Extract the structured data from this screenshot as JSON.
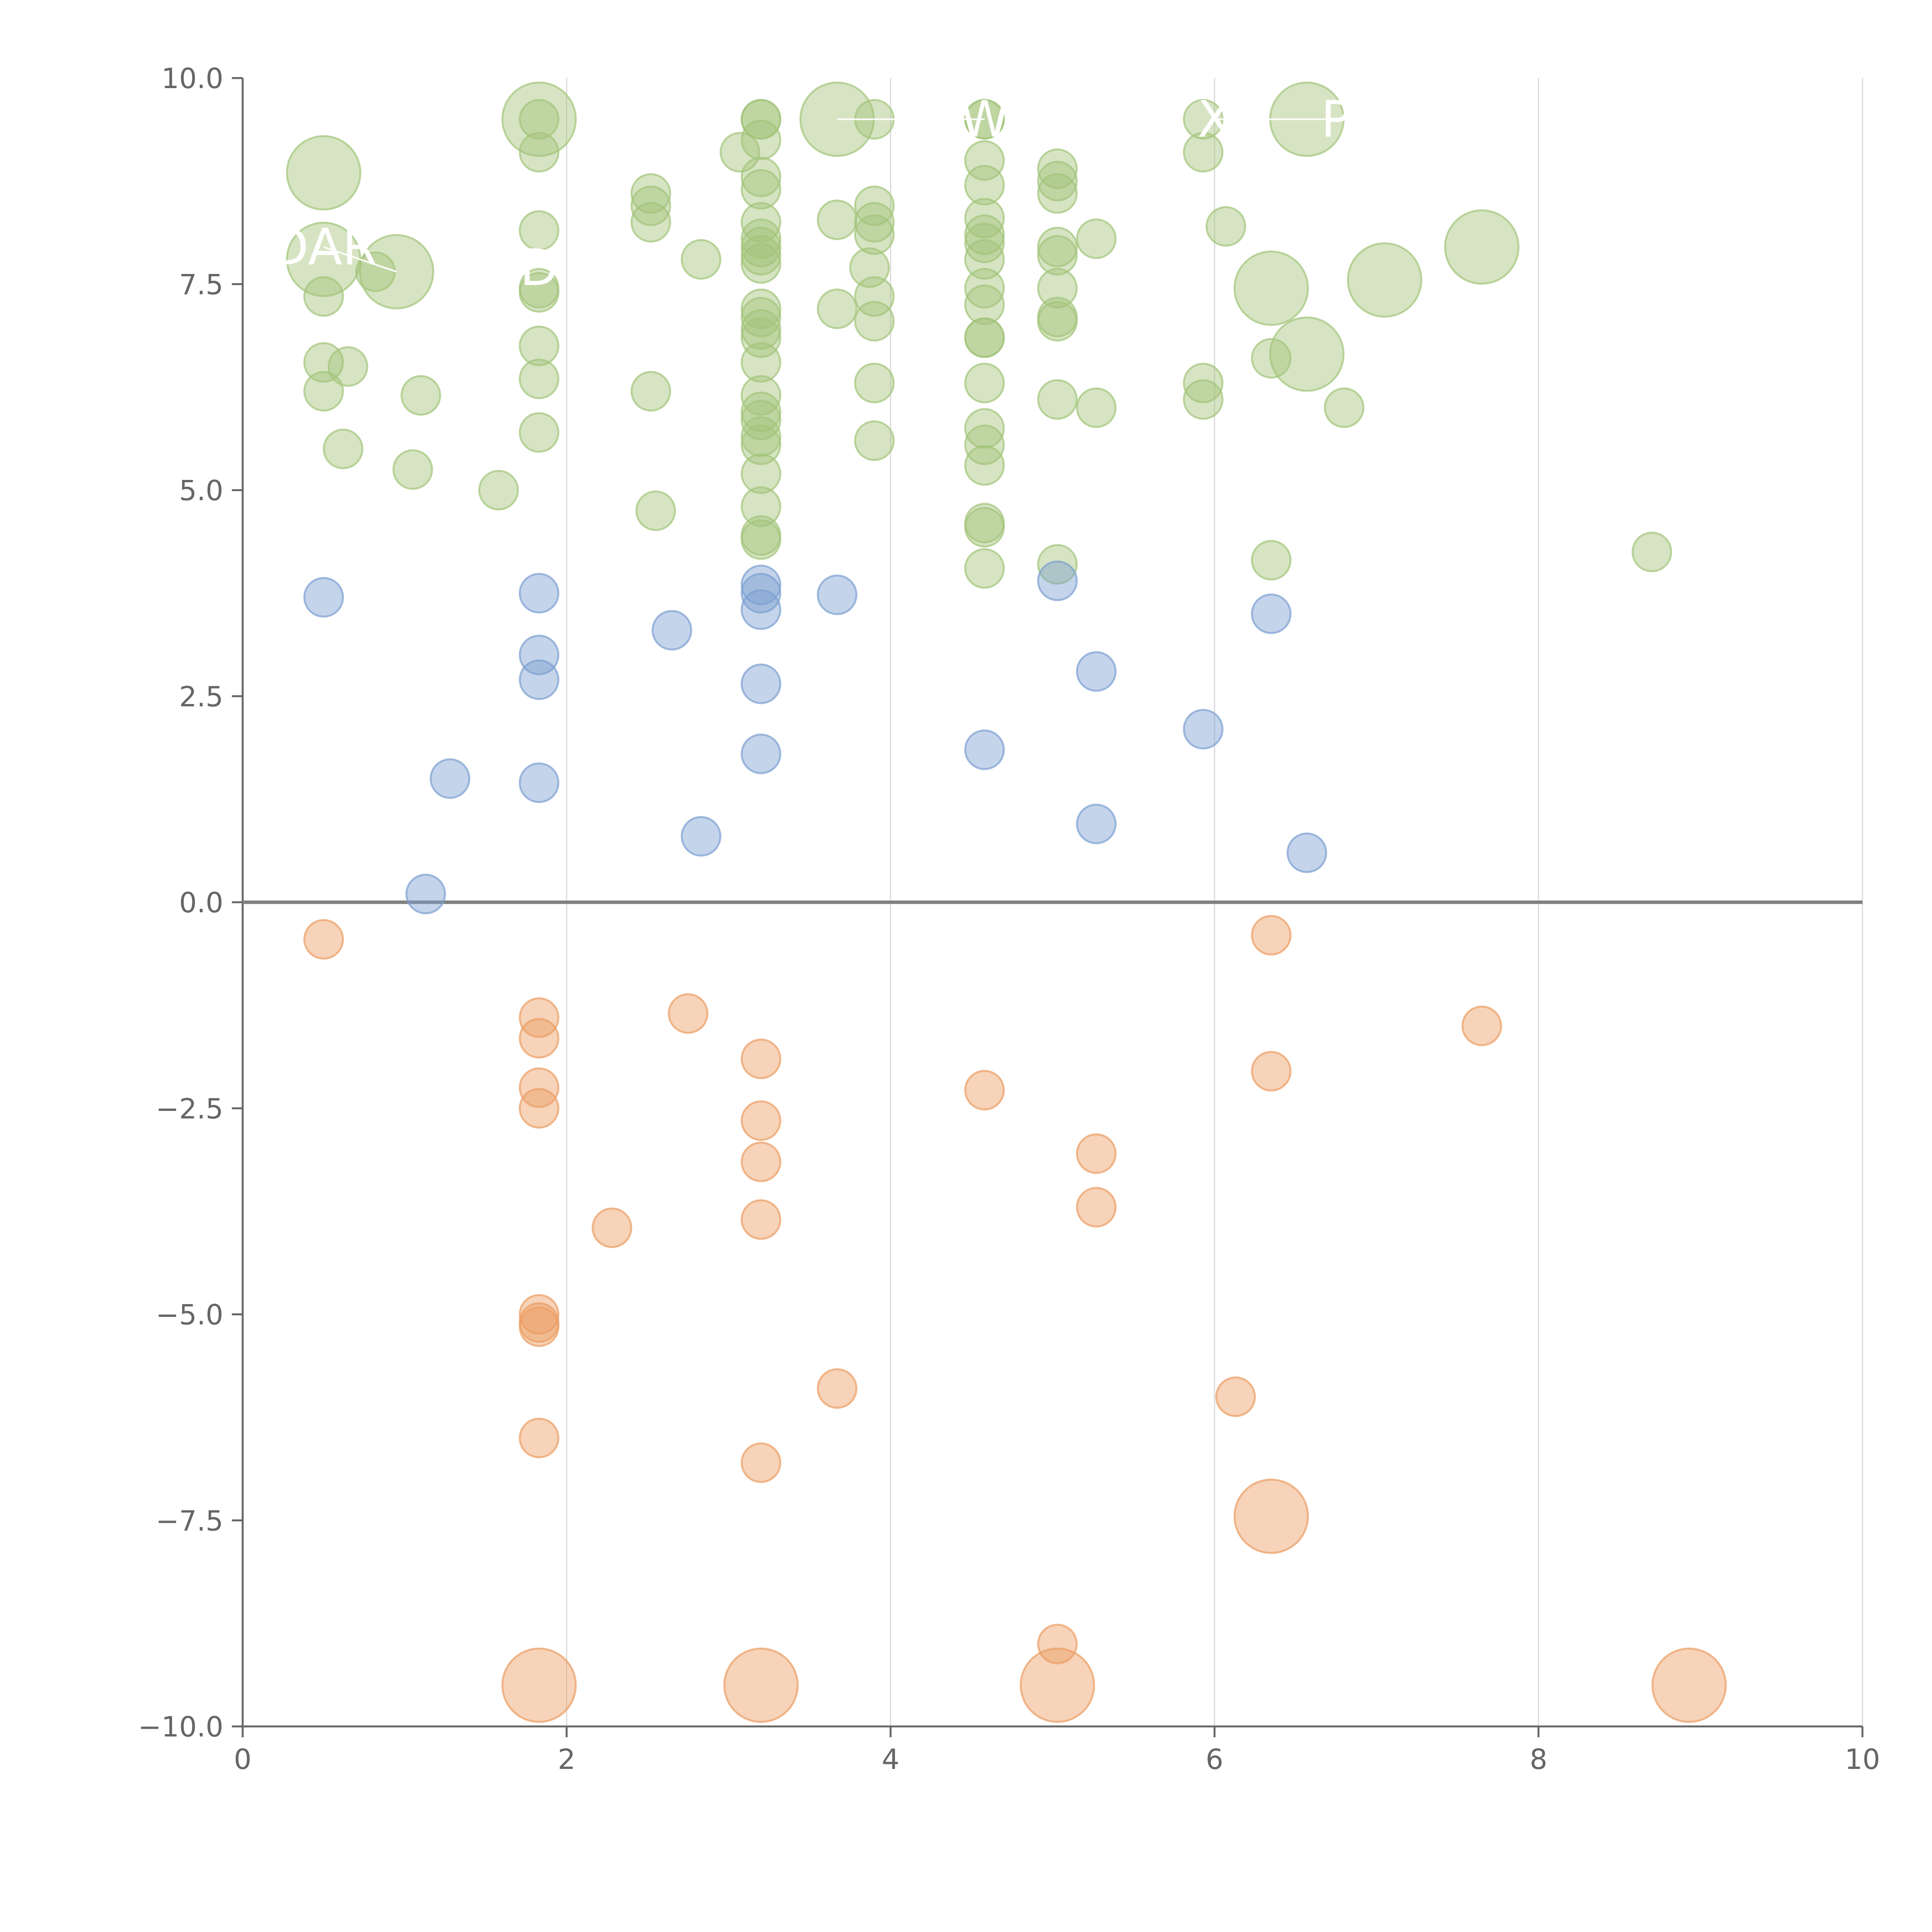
{
  "chart_data": {
    "type": "scatter",
    "xlim": [
      0,
      10
    ],
    "ylim": [
      -10,
      10
    ],
    "x_ticks": [
      "0",
      "2",
      "4",
      "6",
      "8",
      "10"
    ],
    "y_ticks": [
      "−10.0",
      "−7.5",
      "−5.0",
      "−2.5",
      "0.0",
      "2.5",
      "5.0",
      "7.5",
      "10.0"
    ],
    "x_tick_values": [
      0,
      2,
      4,
      6,
      8,
      10
    ],
    "y_tick_values": [
      -10,
      -7.5,
      -5,
      -2.5,
      0,
      2.5,
      5,
      7.5,
      10
    ],
    "grid": "vertical",
    "zero_line": true,
    "colors": {
      "green": "#a3c47a",
      "blue": "#7c9fd1",
      "orange": "#ec9d63",
      "axis": "#666666",
      "grid": "#d9d9d9",
      "zero": "#808080"
    },
    "series": [
      {
        "name": "green",
        "color": "#a3c47a",
        "points": [
          [
            0.5,
            8.85,
            2
          ],
          [
            0.5,
            7.8,
            2
          ],
          [
            0.95,
            7.65,
            2
          ],
          [
            1.83,
            9.5,
            2
          ],
          [
            3.67,
            9.5,
            2
          ],
          [
            6.57,
            9.5,
            2
          ],
          [
            6.35,
            7.45,
            2
          ],
          [
            6.57,
            6.65,
            2
          ],
          [
            7.05,
            7.55,
            2
          ],
          [
            7.65,
            7.95,
            2
          ],
          [
            0.5,
            7.35,
            1
          ],
          [
            0.5,
            6.55,
            1
          ],
          [
            0.5,
            6.2,
            1
          ],
          [
            0.65,
            6.5,
            1
          ],
          [
            0.62,
            5.5,
            1
          ],
          [
            0.82,
            7.65,
            1
          ],
          [
            1.05,
            5.25,
            1
          ],
          [
            1.1,
            6.15,
            1
          ],
          [
            1.58,
            5.0,
            1
          ],
          [
            1.83,
            9.1,
            1
          ],
          [
            1.83,
            8.15,
            1
          ],
          [
            1.83,
            7.45,
            1
          ],
          [
            1.83,
            7.4,
            1
          ],
          [
            1.83,
            6.75,
            1
          ],
          [
            1.83,
            6.35,
            1
          ],
          [
            1.83,
            5.7,
            1
          ],
          [
            1.83,
            9.5,
            1
          ],
          [
            2.52,
            8.6,
            1
          ],
          [
            2.52,
            8.45,
            1
          ],
          [
            2.52,
            8.25,
            1
          ],
          [
            2.52,
            6.2,
            1
          ],
          [
            2.55,
            4.75,
            1
          ],
          [
            2.83,
            7.8,
            1
          ],
          [
            3.07,
            9.1,
            1
          ],
          [
            3.2,
            9.5,
            1
          ],
          [
            3.2,
            9.5,
            1
          ],
          [
            3.2,
            9.25,
            1
          ],
          [
            3.2,
            8.8,
            1
          ],
          [
            3.2,
            8.65,
            1
          ],
          [
            3.2,
            8.25,
            1
          ],
          [
            3.2,
            8.05,
            1
          ],
          [
            3.2,
            7.95,
            1
          ],
          [
            3.2,
            7.85,
            1
          ],
          [
            3.2,
            7.75,
            1
          ],
          [
            3.2,
            7.2,
            1
          ],
          [
            3.2,
            7.1,
            1
          ],
          [
            3.2,
            6.95,
            1
          ],
          [
            3.2,
            6.85,
            1
          ],
          [
            3.2,
            6.55,
            1
          ],
          [
            3.2,
            6.15,
            1
          ],
          [
            3.2,
            5.95,
            1
          ],
          [
            3.2,
            5.85,
            1
          ],
          [
            3.2,
            5.65,
            1
          ],
          [
            3.2,
            5.55,
            1
          ],
          [
            3.2,
            5.2,
            1
          ],
          [
            3.2,
            4.8,
            1
          ],
          [
            3.2,
            4.45,
            1
          ],
          [
            3.2,
            4.4,
            1
          ],
          [
            3.67,
            8.28,
            1
          ],
          [
            3.67,
            7.2,
            1
          ],
          [
            3.9,
            9.5,
            1
          ],
          [
            3.9,
            8.45,
            1
          ],
          [
            3.9,
            8.25,
            1
          ],
          [
            3.9,
            8.1,
            1
          ],
          [
            3.87,
            7.7,
            1
          ],
          [
            3.9,
            7.35,
            1
          ],
          [
            3.9,
            7.05,
            1
          ],
          [
            3.9,
            6.3,
            1
          ],
          [
            3.9,
            5.6,
            1
          ],
          [
            4.58,
            9.5,
            1
          ],
          [
            4.58,
            9.5,
            1
          ],
          [
            4.58,
            9.0,
            1
          ],
          [
            4.58,
            8.7,
            1
          ],
          [
            4.58,
            8.3,
            1
          ],
          [
            4.58,
            8.1,
            1
          ],
          [
            4.58,
            8.0,
            1
          ],
          [
            4.58,
            7.8,
            1
          ],
          [
            4.58,
            7.45,
            1
          ],
          [
            4.58,
            7.25,
            1
          ],
          [
            4.58,
            6.85,
            1
          ],
          [
            4.58,
            6.85,
            1
          ],
          [
            4.58,
            6.3,
            1
          ],
          [
            4.58,
            5.75,
            1
          ],
          [
            4.58,
            5.55,
            1
          ],
          [
            4.58,
            5.3,
            1
          ],
          [
            4.58,
            4.6,
            1
          ],
          [
            4.58,
            4.55,
            1
          ],
          [
            4.58,
            4.05,
            1
          ],
          [
            5.03,
            8.9,
            1
          ],
          [
            5.03,
            8.75,
            1
          ],
          [
            5.03,
            8.6,
            1
          ],
          [
            5.03,
            7.95,
            1
          ],
          [
            5.03,
            7.85,
            1
          ],
          [
            5.03,
            7.45,
            1
          ],
          [
            5.03,
            7.1,
            1
          ],
          [
            5.03,
            7.05,
            1
          ],
          [
            5.03,
            6.1,
            1
          ],
          [
            5.03,
            4.1,
            1
          ],
          [
            5.27,
            8.05,
            1
          ],
          [
            5.27,
            6.0,
            1
          ],
          [
            5.93,
            9.5,
            1
          ],
          [
            5.93,
            9.1,
            1
          ],
          [
            6.07,
            8.2,
            1
          ],
          [
            5.93,
            6.3,
            1
          ],
          [
            5.93,
            6.1,
            1
          ],
          [
            6.35,
            6.6,
            1
          ],
          [
            6.35,
            4.15,
            1
          ],
          [
            6.8,
            6.0,
            1
          ],
          [
            8.7,
            4.25,
            1
          ]
        ]
      },
      {
        "name": "blue",
        "color": "#7c9fd1",
        "points": [
          [
            0.5,
            3.7,
            1
          ],
          [
            1.13,
            0.1,
            1
          ],
          [
            1.28,
            1.5,
            1
          ],
          [
            1.83,
            3.75,
            1
          ],
          [
            1.83,
            3.0,
            1
          ],
          [
            1.83,
            2.7,
            1
          ],
          [
            1.83,
            1.45,
            1
          ],
          [
            2.65,
            3.3,
            1
          ],
          [
            2.83,
            0.8,
            1
          ],
          [
            3.2,
            3.85,
            1
          ],
          [
            3.2,
            3.75,
            1
          ],
          [
            3.2,
            3.55,
            1
          ],
          [
            3.2,
            2.65,
            1
          ],
          [
            3.2,
            1.8,
            1
          ],
          [
            3.67,
            3.73,
            1
          ],
          [
            4.58,
            1.85,
            1
          ],
          [
            5.03,
            3.9,
            1
          ],
          [
            5.27,
            2.8,
            1
          ],
          [
            5.27,
            0.95,
            1
          ],
          [
            5.93,
            2.1,
            1
          ],
          [
            6.35,
            3.5,
            1
          ],
          [
            6.57,
            0.6,
            1
          ]
        ]
      },
      {
        "name": "orange",
        "color": "#ec9d63",
        "points": [
          [
            1.83,
            -9.5,
            2
          ],
          [
            3.2,
            -9.5,
            2
          ],
          [
            5.03,
            -9.5,
            2
          ],
          [
            8.93,
            -9.5,
            2
          ],
          [
            6.35,
            -7.45,
            2
          ],
          [
            0.5,
            -0.45,
            1
          ],
          [
            1.83,
            -1.4,
            1
          ],
          [
            1.83,
            -1.65,
            1
          ],
          [
            1.83,
            -2.25,
            1
          ],
          [
            1.83,
            -2.5,
            1
          ],
          [
            1.83,
            -5.0,
            1
          ],
          [
            1.83,
            -5.1,
            1
          ],
          [
            1.83,
            -5.15,
            1
          ],
          [
            1.83,
            -6.5,
            1
          ],
          [
            2.28,
            -3.95,
            1
          ],
          [
            2.75,
            -1.35,
            1
          ],
          [
            3.2,
            -1.9,
            1
          ],
          [
            3.2,
            -2.65,
            1
          ],
          [
            3.2,
            -3.15,
            1
          ],
          [
            3.2,
            -3.85,
            1
          ],
          [
            3.2,
            -6.8,
            1
          ],
          [
            3.67,
            -5.9,
            1
          ],
          [
            4.58,
            -2.28,
            1
          ],
          [
            5.03,
            -9.0,
            1
          ],
          [
            5.27,
            -3.05,
            1
          ],
          [
            5.27,
            -3.7,
            1
          ],
          [
            6.13,
            -6.0,
            1
          ],
          [
            6.35,
            -0.4,
            1
          ],
          [
            6.35,
            -2.05,
            1
          ],
          [
            7.65,
            -1.5,
            1
          ]
        ]
      }
    ],
    "annotations": [
      {
        "text": "DAR",
        "x": 0.5,
        "y": 7.95,
        "leader_from": [
          0.95,
          7.65
        ]
      },
      {
        "text": "D",
        "x": 1.83,
        "y": 7.7,
        "leader_from": [
          1.83,
          7.7
        ]
      },
      {
        "text": "W",
        "x": 4.58,
        "y": 9.5,
        "leader_from": [
          3.67,
          9.5
        ]
      },
      {
        "text": "X",
        "x": 6.0,
        "y": 9.5,
        "leader_from": [
          6.57,
          9.5
        ]
      },
      {
        "text": "P",
        "x": 6.75,
        "y": 9.5,
        "leader_from": [
          6.57,
          9.5
        ]
      }
    ]
  }
}
